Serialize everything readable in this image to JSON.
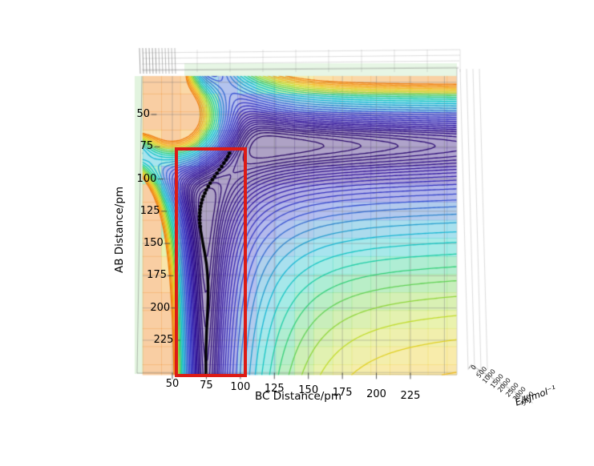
{
  "chart_data": {
    "type": "contour",
    "view": "3d-potential-energy-surface-top-view",
    "title": "",
    "xlabel": "BC Distance/pm",
    "ylabel": "AB Distance/pm",
    "zlabel": "E/kJmol⁻¹",
    "x_ticks": [
      50,
      75,
      100,
      125,
      150,
      175,
      200,
      225
    ],
    "y_ticks": [
      50,
      75,
      100,
      125,
      150,
      175,
      200,
      225
    ],
    "z_ticks": [
      "0",
      "500",
      "1000",
      "1500",
      "2000",
      "2500",
      "3000",
      "3500"
    ],
    "x_range": [
      28,
      259
    ],
    "y_range": [
      20,
      252
    ],
    "potential_model": {
      "description": "V(ab,bc)=mAB(ab)*mBC(bc)/D + A*exp(-((ab-c)^2+(bc-c)^2)/(2*s^2)) + k*(ab+bc), Morse m(r)=D*(1-exp(-a*(r-re)))^2",
      "D": 400,
      "re": 75,
      "a_ab": 0.015,
      "a_bc": 0.032,
      "rep_amp": 800,
      "rep_center": 50,
      "rep_sigma": 20,
      "tilt_k": 0.11
    },
    "contour_levels": [
      26,
      29,
      32,
      35,
      38,
      42,
      46,
      50,
      55,
      60,
      66,
      73,
      81,
      90,
      100,
      112,
      126,
      142,
      160,
      180,
      201,
      224,
      248,
      272,
      296,
      320,
      345,
      371,
      398,
      426,
      455,
      485
    ],
    "colormap_stops": [
      [
        0.0,
        "#2b0a66"
      ],
      [
        0.07,
        "#321399"
      ],
      [
        0.14,
        "#3632bf"
      ],
      [
        0.22,
        "#3a55d4"
      ],
      [
        0.3,
        "#2f8ccc"
      ],
      [
        0.38,
        "#18b7d3"
      ],
      [
        0.46,
        "#16cdbb"
      ],
      [
        0.54,
        "#38d077"
      ],
      [
        0.62,
        "#7ed441"
      ],
      [
        0.7,
        "#c6dd2c"
      ],
      [
        0.78,
        "#eecb22"
      ],
      [
        0.86,
        "#f3a71c"
      ],
      [
        1.0,
        "#ef7d0e"
      ]
    ],
    "surface_alpha": 0.38,
    "grid_step_pm": 25,
    "grid_color": "#777777",
    "trajectory": {
      "color": "#000000",
      "dot_radius": 2.4,
      "line_width": 3.4,
      "dots": [
        [
          92.0,
          80.0
        ],
        [
          90.8,
          82.6
        ],
        [
          89.5,
          85.2
        ],
        [
          87.9,
          87.7
        ],
        [
          86.3,
          90.3
        ],
        [
          84.5,
          92.9
        ],
        [
          82.8,
          95.5
        ],
        [
          81.0,
          98.1
        ],
        [
          79.4,
          100.6
        ],
        [
          77.8,
          103.2
        ],
        [
          76.4,
          105.8
        ],
        [
          75.0,
          108.4
        ],
        [
          73.9,
          111.0
        ],
        [
          72.8,
          113.5
        ],
        [
          72.0,
          116.1
        ],
        [
          71.3,
          118.7
        ],
        [
          70.8,
          121.3
        ],
        [
          70.4,
          123.9
        ],
        [
          70.2,
          126.4
        ],
        [
          70.1,
          129.0
        ],
        [
          70.1,
          131.6
        ],
        [
          70.2,
          134.2
        ],
        [
          70.5,
          136.8
        ]
      ],
      "line": [
        [
          70.5,
          136.8
        ],
        [
          70.9,
          140.2
        ],
        [
          72.3,
          148.8
        ],
        [
          73.8,
          157.4
        ],
        [
          75.1,
          166.0
        ],
        [
          75.9,
          174.6
        ],
        [
          76.3,
          183.2
        ],
        [
          76.3,
          191.8
        ],
        [
          76.0,
          200.4
        ],
        [
          75.6,
          209.0
        ],
        [
          75.2,
          217.6
        ],
        [
          74.9,
          226.2
        ],
        [
          74.7,
          234.8
        ],
        [
          74.7,
          243.4
        ],
        [
          74.7,
          252.0
        ]
      ]
    },
    "annotation_rect": {
      "bc_min": 53,
      "bc_max": 104,
      "ab_min": 77,
      "ab_max": 253,
      "color": "#dd1b15",
      "line_width": 4.5
    }
  }
}
